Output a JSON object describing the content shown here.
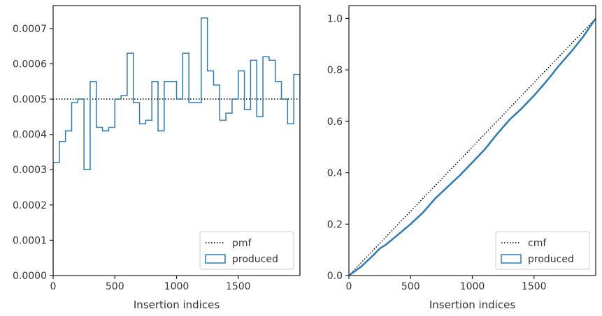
{
  "chart_data": [
    {
      "type": "line",
      "step": true,
      "xlabel": "Insertion indices",
      "ylabel": "",
      "xlim": [
        0,
        2000
      ],
      "ylim": [
        0,
        0.000765
      ],
      "x_ticks": [
        0,
        500,
        1000,
        1500
      ],
      "x_tick_labels": [
        "0",
        "500",
        "1000",
        "1500"
      ],
      "y_ticks": [
        0,
        0.0001,
        0.0002,
        0.0003,
        0.0004,
        0.0005,
        0.0006,
        0.0007
      ],
      "y_tick_labels": [
        "0.0000",
        "0.0001",
        "0.0002",
        "0.0003",
        "0.0004",
        "0.0005",
        "0.0006",
        "0.0007"
      ],
      "grid": false,
      "legend_position": "lower-right",
      "series": [
        {
          "name": "pmf",
          "style": "dotted",
          "color": "#000000",
          "x": [
            0,
            2000
          ],
          "y": [
            0.0005,
            0.0005
          ]
        },
        {
          "name": "produced",
          "style": "step",
          "color": "#2b7bb9",
          "bin_edges": [
            0,
            50,
            100,
            150,
            200,
            250,
            300,
            350,
            400,
            450,
            500,
            550,
            600,
            650,
            700,
            750,
            800,
            850,
            900,
            950,
            1000,
            1050,
            1100,
            1150,
            1200,
            1250,
            1300,
            1350,
            1400,
            1450,
            1500,
            1550,
            1600,
            1650,
            1700,
            1750,
            1800,
            1850,
            1900,
            1950,
            2000
          ],
          "values": [
            0.00032,
            0.00038,
            0.00041,
            0.00049,
            0.0005,
            0.0003,
            0.00055,
            0.00042,
            0.00041,
            0.00042,
            0.0005,
            0.00051,
            0.00063,
            0.00049,
            0.00043,
            0.00044,
            0.00055,
            0.00041,
            0.00055,
            0.00055,
            0.0005,
            0.00063,
            0.00049,
            0.00049,
            0.00073,
            0.00058,
            0.00054,
            0.00044,
            0.00046,
            0.0005,
            0.00058,
            0.00047,
            0.00061,
            0.00045,
            0.00062,
            0.00061,
            0.00055,
            0.0005,
            0.00043,
            0.00057
          ]
        }
      ]
    },
    {
      "type": "line",
      "xlabel": "Insertion indices",
      "ylabel": "",
      "xlim": [
        0,
        2000
      ],
      "ylim": [
        0,
        1.05
      ],
      "x_ticks": [
        0,
        500,
        1000,
        1500
      ],
      "x_tick_labels": [
        "0",
        "500",
        "1000",
        "1500"
      ],
      "y_ticks": [
        0,
        0.2,
        0.4,
        0.6,
        0.8,
        1.0
      ],
      "y_tick_labels": [
        "0.0",
        "0.2",
        "0.4",
        "0.6",
        "0.8",
        "1.0"
      ],
      "grid": false,
      "legend_position": "lower-right",
      "series": [
        {
          "name": "cmf",
          "style": "dotted",
          "color": "#000000",
          "x": [
            0,
            2000
          ],
          "y": [
            0,
            1.0
          ]
        },
        {
          "name": "produced",
          "style": "solid",
          "color": "#2b7bb9",
          "x": [
            0,
            100,
            200,
            250,
            300,
            400,
            500,
            600,
            700,
            800,
            900,
            1000,
            1100,
            1200,
            1300,
            1400,
            1500,
            1600,
            1700,
            1800,
            1900,
            2000
          ],
          "y": [
            0,
            0.035,
            0.08,
            0.105,
            0.12,
            0.16,
            0.2,
            0.245,
            0.3,
            0.345,
            0.39,
            0.44,
            0.49,
            0.55,
            0.605,
            0.65,
            0.7,
            0.755,
            0.815,
            0.87,
            0.93,
            1.0
          ]
        }
      ]
    }
  ]
}
